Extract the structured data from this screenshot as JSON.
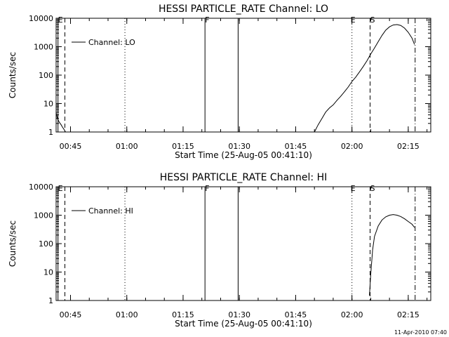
{
  "footer_timestamp": "11-Apr-2010 07:40",
  "chart_data": [
    {
      "type": "line",
      "title": "HESSI PARTICLE_RATE Channel: LO",
      "xlabel": "Start Time (25-Aug-05 00:41:10)",
      "ylabel": "Counts/sec",
      "y_scale": "log",
      "ylim": [
        1,
        10000
      ],
      "xlim": [
        "00:41:10",
        "02:21:00"
      ],
      "x_ticks": [
        "00:45",
        "01:00",
        "01:15",
        "01:30",
        "01:45",
        "02:00",
        "02:15"
      ],
      "y_ticks": [
        "1",
        "10",
        "100",
        "1000",
        "10000"
      ],
      "legend": {
        "placement": "top-left",
        "entries": [
          "Channel: LO"
        ]
      },
      "markers": [
        {
          "label": "E",
          "time": "00:41:40",
          "style": "solid"
        },
        {
          "label": "",
          "time": "00:43:30",
          "style": "dashed"
        },
        {
          "label": "",
          "time": "00:59:30",
          "style": "dotted"
        },
        {
          "label": "F",
          "time": "01:20:50",
          "style": "solid"
        },
        {
          "label": "",
          "time": "01:29:40",
          "style": "solid"
        },
        {
          "label": "",
          "time": "02:00:00",
          "style": "dotted"
        },
        {
          "label": "E",
          "time": "02:00:00",
          "style": "none"
        },
        {
          "label": "S",
          "time": "02:04:50",
          "style": "dashed"
        },
        {
          "label": "",
          "time": "02:16:50",
          "style": "dash-dot"
        }
      ],
      "series": [
        {
          "name": "Channel: LO",
          "segments": [
            {
              "x": [
                "00:41:10",
                "00:41:30",
                "00:42:00",
                "00:42:30",
                "00:42:50",
                "00:43:10",
                "00:43:40"
              ],
              "y": [
                5,
                3,
                2.2,
                1.8,
                1.5,
                1.3,
                1
              ]
            },
            {
              "x": [
                "01:50:00",
                "01:51:00",
                "01:52:00",
                "01:53:00",
                "01:54:00",
                "01:55:00",
                "01:56:00",
                "01:57:00",
                "01:58:00",
                "01:59:00",
                "02:00:00",
                "02:01:00",
                "02:02:00",
                "02:03:00",
                "02:04:00",
                "02:05:00",
                "02:06:00",
                "02:07:00",
                "02:08:00",
                "02:09:00",
                "02:10:00",
                "02:11:00",
                "02:12:00",
                "02:13:00",
                "02:14:00",
                "02:15:00",
                "02:16:00",
                "02:16:40"
              ],
              "y": [
                1,
                1.8,
                3,
                5,
                7,
                9,
                13,
                18,
                26,
                38,
                60,
                85,
                130,
                200,
                320,
                550,
                900,
                1500,
                2500,
                3800,
                5000,
                5800,
                6000,
                5600,
                4500,
                3200,
                2000,
                1200
              ]
            }
          ]
        }
      ]
    },
    {
      "type": "line",
      "title": "HESSI PARTICLE_RATE Channel: HI",
      "xlabel": "Start Time (25-Aug-05 00:41:10)",
      "ylabel": "Counts/sec",
      "y_scale": "log",
      "ylim": [
        1,
        10000
      ],
      "xlim": [
        "00:41:10",
        "02:21:00"
      ],
      "x_ticks": [
        "00:45",
        "01:00",
        "01:15",
        "01:30",
        "01:45",
        "02:00",
        "02:15"
      ],
      "y_ticks": [
        "1",
        "10",
        "100",
        "1000",
        "10000"
      ],
      "legend": {
        "placement": "top-left",
        "entries": [
          "Channel: HI"
        ]
      },
      "markers": [
        {
          "label": "E",
          "time": "00:41:40",
          "style": "solid"
        },
        {
          "label": "",
          "time": "00:43:30",
          "style": "dashed"
        },
        {
          "label": "",
          "time": "00:59:30",
          "style": "dotted"
        },
        {
          "label": "F",
          "time": "01:20:50",
          "style": "solid"
        },
        {
          "label": "",
          "time": "01:29:40",
          "style": "solid"
        },
        {
          "label": "",
          "time": "02:00:00",
          "style": "dotted"
        },
        {
          "label": "E",
          "time": "02:00:00",
          "style": "none"
        },
        {
          "label": "S",
          "time": "02:04:50",
          "style": "dashed"
        },
        {
          "label": "",
          "time": "02:16:50",
          "style": "dash-dot"
        }
      ],
      "series": [
        {
          "name": "Channel: HI",
          "segments": [
            {
              "x": [
                "02:04:40",
                "02:05:00",
                "02:05:30",
                "02:06:00",
                "02:07:00",
                "02:08:00",
                "02:09:00",
                "02:10:00",
                "02:11:00",
                "02:12:00",
                "02:13:00",
                "02:14:00",
                "02:15:00",
                "02:16:00",
                "02:16:40"
              ],
              "y": [
                1.5,
                8,
                60,
                180,
                420,
                680,
                870,
                1000,
                1050,
                1000,
                900,
                750,
                600,
                480,
                370
              ]
            }
          ]
        }
      ]
    }
  ]
}
